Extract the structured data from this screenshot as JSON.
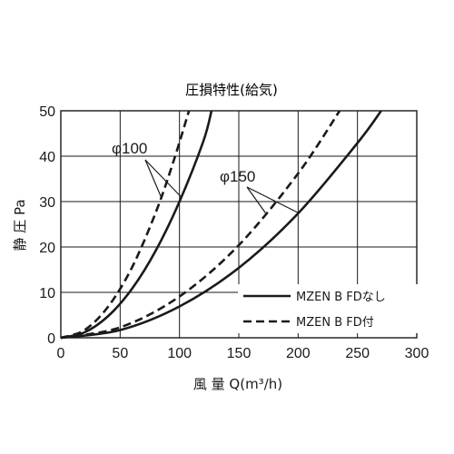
{
  "chart_data": {
    "type": "line",
    "title": "圧損特性(給気)",
    "xlabel": "風 量 Q(m³/h)",
    "ylabel": "静 圧 Pa",
    "xlim": [
      0,
      300
    ],
    "ylim": [
      0,
      50
    ],
    "xticks": [
      "0",
      "50",
      "100",
      "150",
      "200",
      "250",
      "300"
    ],
    "yticks": [
      "0",
      "10",
      "20",
      "30",
      "40",
      "50"
    ],
    "grid": true,
    "legend_position": "bottom-right",
    "legend": [
      {
        "label": "MZEN B FDなし",
        "style": "solid"
      },
      {
        "label": "MZEN B FD付",
        "style": "dashed"
      }
    ],
    "annotations": [
      {
        "text": "φ100"
      },
      {
        "text": "φ150"
      }
    ],
    "series": [
      {
        "group": "φ100",
        "legend": "MZEN B FDなし",
        "style": "solid",
        "x": [
          0,
          20,
          40,
          60,
          80,
          100,
          120,
          127
        ],
        "y": [
          0,
          1.2,
          4.8,
          10.8,
          19.2,
          30,
          43.2,
          50
        ]
      },
      {
        "group": "φ100",
        "legend": "MZEN B FD付",
        "style": "dashed",
        "x": [
          0,
          20,
          40,
          60,
          80,
          95,
          108
        ],
        "y": [
          0,
          1.7,
          6.9,
          15.5,
          27.6,
          38.9,
          50
        ]
      },
      {
        "group": "φ150",
        "legend": "MZEN B FDなし",
        "style": "solid",
        "x": [
          0,
          50,
          100,
          150,
          200,
          250,
          270
        ],
        "y": [
          0,
          1.7,
          6.9,
          15.4,
          27.4,
          42.9,
          50
        ]
      },
      {
        "group": "φ150",
        "legend": "MZEN B FD付",
        "style": "dashed",
        "x": [
          0,
          50,
          100,
          150,
          200,
          235
        ],
        "y": [
          0,
          2.3,
          9.1,
          20.4,
          36.2,
          50
        ]
      }
    ]
  },
  "colors": {
    "line": "#1a1a1a",
    "grid": "#1a1a1a",
    "background": "#ffffff"
  }
}
